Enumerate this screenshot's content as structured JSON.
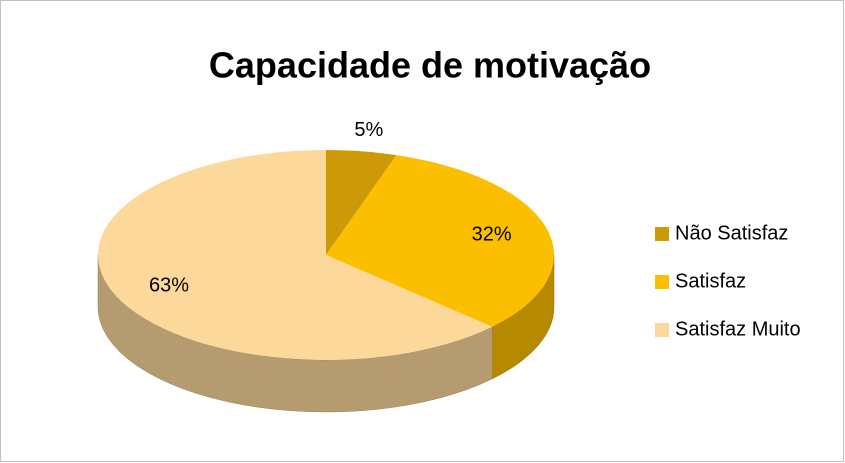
{
  "chart_data": {
    "type": "pie",
    "title": "Capacidade de motivação",
    "categories": [
      "Não Satisfaz",
      "Satisfaz",
      "Satisfaz Muito"
    ],
    "values": [
      5,
      32,
      63
    ],
    "value_labels": [
      "5%",
      "32%",
      "63%"
    ],
    "colors": [
      "#cc9a06",
      "#fbbf00",
      "#fcd99b"
    ],
    "legend": "right"
  }
}
